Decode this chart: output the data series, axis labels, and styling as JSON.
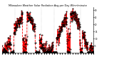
{
  "title": "Milwaukee Weather Solar Radiation Avg per Day W/m²/minute",
  "line_color": "#ff0000",
  "background_color": "#ffffff",
  "grid_color": "#999999",
  "ylim": [
    0,
    32
  ],
  "ytick_values": [
    5,
    10,
    15,
    20,
    25,
    30
  ],
  "ytick_labels": [
    "5",
    "10",
    "15",
    "20",
    "25",
    "30"
  ],
  "num_points": 730,
  "line_style": "--",
  "line_width": 0.6,
  "marker": ".",
  "marker_color": "#000000",
  "marker_size": 0.8,
  "num_vgrid": 6,
  "title_fontsize": 2.5,
  "tick_fontsize": 2.0
}
